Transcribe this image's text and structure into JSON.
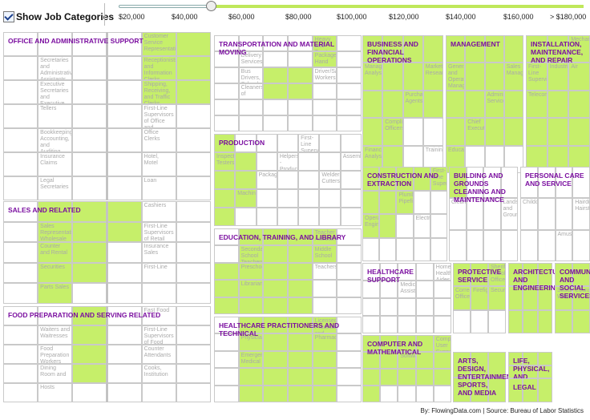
{
  "controls": {
    "show_categories_label": "Show Job Categories",
    "show_categories_checked": true
  },
  "chart_data": {
    "type": "treemap",
    "title": "",
    "slider": {
      "ticks": [
        "$20,000",
        "$40,000",
        "$60,000",
        "$80,000",
        "$100,000",
        "$120,000",
        "$140,000",
        "$160,000",
        "> $180,000"
      ],
      "min_salary_selected": 50000
    },
    "highlight_color": "#c6ef6a",
    "label_color": "#7b0fa0",
    "categories": [
      {
        "name": "Office and Administrative Support",
        "jobs": [
          "Customer Service Representatives",
          "Secretaries and Administrative Assistants, Except Legal, Medical, and Executive",
          "Receptionists and Information Clerks",
          "Executive Secretaries and Executive Administrative Assistants",
          "Shipping, Receiving, and Traffic Clerks",
          "Tellers",
          "First-Line Supervisors of Office and Administrative Support Workers",
          "Bookkeeping, Accounting, and Auditing Clerks",
          "Office Clerks",
          "Insurance Claims",
          "Hotel, Motel",
          "Legal Secretaries",
          "Loan"
        ]
      },
      {
        "name": "Sales and Related",
        "jobs": [
          "Cashiers",
          "Sales Representatives, Wholesale and Manufacturing, Except Technical",
          "First-Line Supervisors of Retail Sales Workers",
          "Counter and Rental",
          "Insurance Sales",
          "Securities",
          "First-Line",
          "Parts Sales"
        ]
      },
      {
        "name": "Food Preparation and Serving Related",
        "jobs": [
          "Fast Food",
          "Waiters and Waitresses",
          "First-Line Supervisors of Food",
          "Food Preparation Workers",
          "Counter Attendants",
          "Dining Room and",
          "Cooks, Institution",
          "Hosts"
        ]
      },
      {
        "name": "Transportation and Material Moving",
        "jobs": [
          "Heavy and Tractor-Trailer Truck Drivers",
          "Delivery Services",
          "Package Hand",
          "Bus Drivers, School or",
          "Driver/Sales Workers",
          "Cleaners of"
        ]
      },
      {
        "name": "Production",
        "jobs": [
          "First-Line Supervisors",
          "Inspectors, Testers",
          "Helpers--Production",
          "Assemblers",
          "Packaging",
          "Welders, Cutters",
          "Machinists"
        ]
      },
      {
        "name": "Education, Training, and Library",
        "jobs": [
          "Teacher Assistants",
          "Secondary School Teachers, Except Special",
          "Middle School",
          "Preschool",
          "Teachers",
          "Librarians"
        ]
      },
      {
        "name": "Healthcare Practitioners and Technical",
        "jobs": [
          "Licensed Practical and Licensed",
          "Physicians",
          "Pharmacists",
          "Emergency Medical"
        ]
      },
      {
        "name": "Business and Financial Operations",
        "jobs": [
          "Management Analysts",
          "Market Research",
          "Purchasing Agents",
          "Compliance Officers",
          "Financial Analysts",
          "Training",
          "Cost",
          "Loan"
        ]
      },
      {
        "name": "Management",
        "jobs": [
          "General and Operations Managers",
          "Sales Managers",
          "Administrative Services",
          "Chief Executives",
          "Education"
        ]
      },
      {
        "name": "Installation, Maintenance, and Repair",
        "jobs": [
          "Mechanics",
          "First-Line Supervisors",
          "Industrial",
          "Air",
          "Telecommunications"
        ]
      },
      {
        "name": "Construction and Extraction",
        "jobs": [
          "First-Line Supervisors",
          "Plumbers, Pipefitters",
          "Operating Engineers",
          "Electricians"
        ]
      },
      {
        "name": "Building and Grounds Cleaning and Maintenance",
        "jobs": [
          "Cleaners",
          "Landscaping and Groundskeeping"
        ]
      },
      {
        "name": "Personal Care and Service",
        "jobs": [
          "Childcare",
          "Hairdressers, Hairstylists",
          "Amusement",
          "Recreation"
        ]
      },
      {
        "name": "Healthcare Support",
        "jobs": [
          "Home Health Aides",
          "Medical Assistants"
        ]
      },
      {
        "name": "Protective Service",
        "jobs": [
          "Sheriff's Patrol Officers",
          "Correctional Officers",
          "Firefighters",
          "Security"
        ]
      },
      {
        "name": "Architecture and Engineering",
        "jobs": []
      },
      {
        "name": "Community and Social Services",
        "jobs": [
          "Social Workers",
          "Counselors"
        ]
      },
      {
        "name": "Computer and Mathematical",
        "jobs": [
          "Computer User Support",
          "Software"
        ]
      },
      {
        "name": "Arts, Design, Entertainment, Sports, and Media",
        "jobs": []
      },
      {
        "name": "Life, Physical, and Social Science",
        "jobs": []
      },
      {
        "name": "Legal",
        "jobs": []
      }
    ]
  },
  "credit": "By: FlowingData.com | Source: Bureau of Labor Statistics"
}
